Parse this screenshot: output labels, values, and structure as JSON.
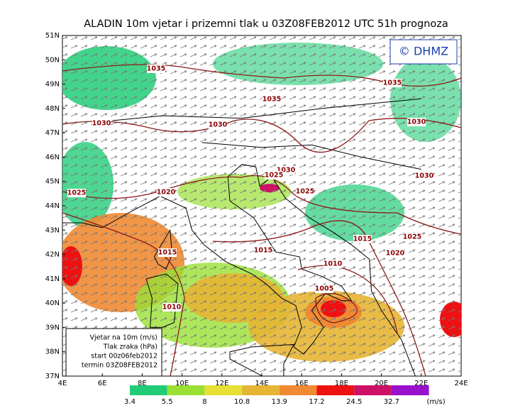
{
  "title": "ALADIN 10m vjetar i prizemni tlak u 03Z08FEB2012 UTC 51h prognoza",
  "logo": "© DHMZ",
  "lat_labels": [
    "51N",
    "50N",
    "49N",
    "48N",
    "47N",
    "46N",
    "45N",
    "44N",
    "43N",
    "42N",
    "41N",
    "40N",
    "39N",
    "38N",
    "37N"
  ],
  "lon_labels": [
    "4E",
    "6E",
    "8E",
    "10E",
    "12E",
    "14E",
    "16E",
    "18E",
    "20E",
    "22E",
    "24E"
  ],
  "info_box": [
    "Vjetar na 10m (m/s)",
    "Tlak zraka (hPa)",
    "start 00z06feb2012",
    "termin 03Z08FEB2012"
  ],
  "colorbar": {
    "values": [
      3.4,
      5.5,
      8,
      10.8,
      13.9,
      17.2,
      24.5,
      32.7
    ],
    "unit": "(m/s)",
    "colors": [
      "#22cc77",
      "#99e033",
      "#e5e033",
      "#e5b533",
      "#f08a33",
      "#ee1111",
      "#cc1166",
      "#9911cc"
    ]
  },
  "isobars": [
    1035,
    1035,
    1035,
    1030,
    1030,
    1030,
    1030,
    1030,
    1025,
    1020,
    1025,
    1025,
    1025,
    1015,
    1015,
    1015,
    1020,
    1010,
    1005,
    1010
  ]
}
